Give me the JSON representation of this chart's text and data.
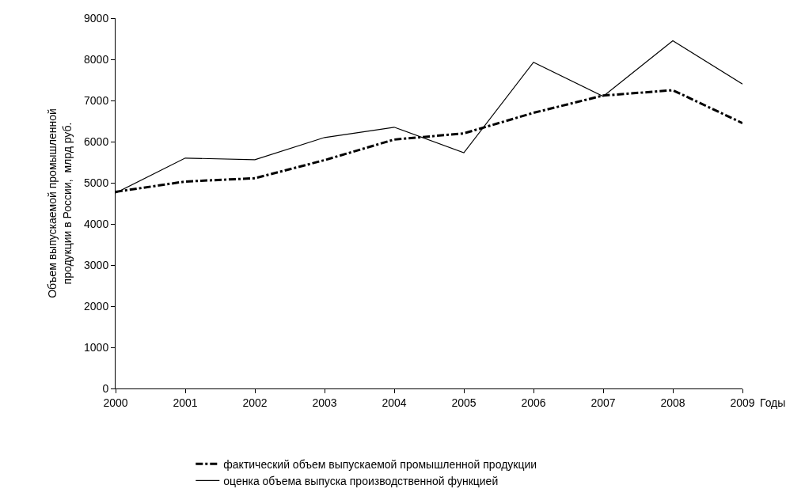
{
  "chart_data": {
    "type": "line",
    "xlabel": "Годы",
    "ylabel": "Объем выпускаемой промышленной\nпродукции в России,  млрд руб.",
    "x": [
      2000,
      2001,
      2002,
      2003,
      2004,
      2005,
      2006,
      2007,
      2008,
      2009
    ],
    "xlim": [
      2000,
      2009
    ],
    "xticks": [
      2000,
      2001,
      2002,
      2003,
      2004,
      2005,
      2006,
      2007,
      2008,
      2009
    ],
    "ylim": [
      0,
      9000
    ],
    "yticks": [
      0,
      1000,
      2000,
      3000,
      4000,
      5000,
      6000,
      7000,
      8000,
      9000
    ],
    "legend": "bottom",
    "marker": "none",
    "series": [
      {
        "name": "фактический объем выпускаемой промышленной продукции",
        "color": "#000000",
        "line_style": "dashed",
        "values": [
          4780,
          5030,
          5110,
          5550,
          6050,
          6200,
          6700,
          7120,
          7250,
          6450
        ]
      },
      {
        "name": "оценка объема выпуска производственной функцией",
        "color": "#000000",
        "line_style": "solid",
        "values": [
          4750,
          5600,
          5560,
          6100,
          6350,
          5730,
          7930,
          7100,
          8450,
          7400
        ]
      }
    ]
  }
}
